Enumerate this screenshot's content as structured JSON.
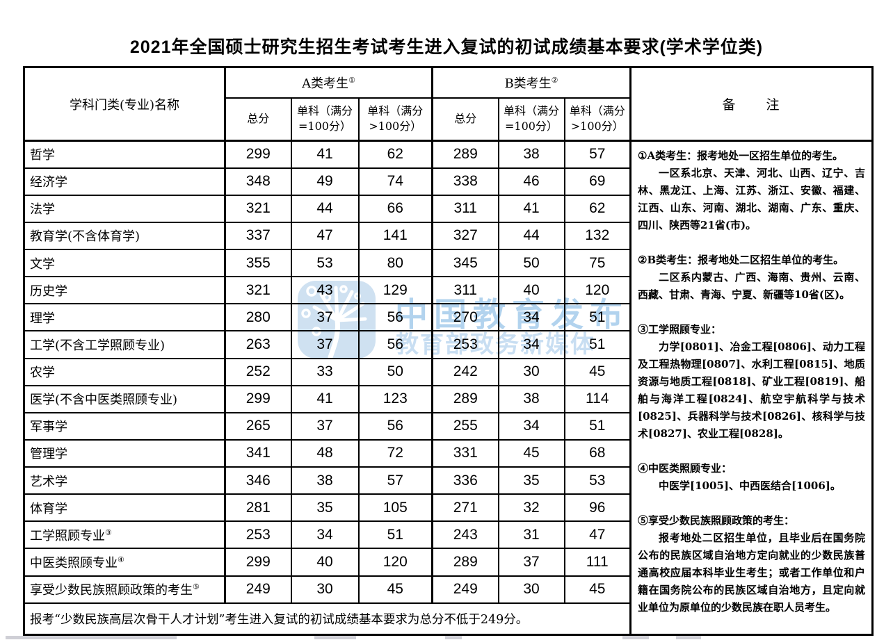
{
  "title": "2021年全国硕士研究生招生考试考生进入复试的初试成绩基本要求(学术学位类)",
  "colors": {
    "text": "#000000",
    "border": "#000000",
    "watermark_blue": "#b2d3ee",
    "watermark_logo_bg": "#cfe1f1"
  },
  "watermark": {
    "line1": "中国教育发布",
    "line2": "教育部政务新媒体",
    "logo": "dandelion-icon"
  },
  "table": {
    "header": {
      "subject": "学科门类(专业)名称",
      "group_a": {
        "label": "A类考生",
        "sup": "①"
      },
      "group_b": {
        "label": "B类考生",
        "sup": "②"
      },
      "remark": "备　　注",
      "sub": [
        "总分",
        "单科（满分\n=100分）",
        "单科（满分\n>100分）"
      ]
    },
    "rows": [
      {
        "label": "哲学",
        "sup": "",
        "a": [
          299,
          41,
          62
        ],
        "b": [
          289,
          38,
          57
        ]
      },
      {
        "label": "经济学",
        "sup": "",
        "a": [
          348,
          49,
          74
        ],
        "b": [
          338,
          46,
          69
        ]
      },
      {
        "label": "法学",
        "sup": "",
        "a": [
          321,
          44,
          66
        ],
        "b": [
          311,
          41,
          62
        ]
      },
      {
        "label": "教育学(不含体育学)",
        "sup": "",
        "a": [
          337,
          47,
          141
        ],
        "b": [
          327,
          44,
          132
        ]
      },
      {
        "label": "文学",
        "sup": "",
        "a": [
          355,
          53,
          80
        ],
        "b": [
          345,
          50,
          75
        ]
      },
      {
        "label": "历史学",
        "sup": "",
        "a": [
          321,
          43,
          129
        ],
        "b": [
          311,
          40,
          120
        ]
      },
      {
        "label": "理学",
        "sup": "",
        "a": [
          280,
          37,
          56
        ],
        "b": [
          270,
          34,
          51
        ]
      },
      {
        "label": "工学(不含工学照顾专业)",
        "sup": "",
        "a": [
          263,
          37,
          56
        ],
        "b": [
          253,
          34,
          51
        ]
      },
      {
        "label": "农学",
        "sup": "",
        "a": [
          252,
          33,
          50
        ],
        "b": [
          242,
          30,
          45
        ]
      },
      {
        "label": "医学(不含中医类照顾专业)",
        "sup": "",
        "a": [
          299,
          41,
          123
        ],
        "b": [
          289,
          38,
          114
        ]
      },
      {
        "label": "军事学",
        "sup": "",
        "a": [
          265,
          37,
          56
        ],
        "b": [
          255,
          34,
          51
        ]
      },
      {
        "label": "管理学",
        "sup": "",
        "a": [
          341,
          48,
          72
        ],
        "b": [
          331,
          45,
          68
        ]
      },
      {
        "label": "艺术学",
        "sup": "",
        "a": [
          346,
          38,
          57
        ],
        "b": [
          336,
          35,
          53
        ]
      },
      {
        "label": "体育学",
        "sup": "",
        "a": [
          281,
          35,
          105
        ],
        "b": [
          271,
          32,
          96
        ]
      },
      {
        "label": "工学照顾专业",
        "sup": "③",
        "a": [
          253,
          34,
          51
        ],
        "b": [
          243,
          31,
          47
        ]
      },
      {
        "label": "中医类照顾专业",
        "sup": "④",
        "a": [
          299,
          40,
          120
        ],
        "b": [
          289,
          37,
          111
        ]
      },
      {
        "label": "享受少数民族照顾政策的考生",
        "sup": "⑤",
        "a": [
          249,
          30,
          45
        ],
        "b": [
          249,
          30,
          45
        ]
      }
    ],
    "footer": "报考“少数民族高层次骨干人才计划”考生进入复试的初试成绩基本要求为总分不低于249分。",
    "notes": [
      {
        "head": "①A类考生：报考地处一区招生单位的考生。",
        "body": "一区系北京、天津、河北、山西、辽宁、吉林、黑龙江、上海、江苏、浙江、安徽、福建、江西、山东、河南、湖北、湖南、广东、重庆、四川、陕西等21省(市)。"
      },
      {
        "head": "②B类考生：报考地处二区招生单位的考生。",
        "body": "二区系内蒙古、广西、海南、贵州、云南、西藏、甘肃、青海、宁夏、新疆等10省(区)。"
      },
      {
        "head": "③工学照顾专业：",
        "body": "力学[0801]、冶金工程[0806]、动力工程及工程热物理[0807]、水利工程[0815]、地质资源与地质工程[0818]、矿业工程[0819]、船舶与海洋工程[0824]、航空宇航科学与技术[0825]、兵器科学与技术[0826]、核科学与技术[0827]、农业工程[0828]。"
      },
      {
        "head": "④中医类照顾专业：",
        "body": "中医学[1005]、中西医结合[1006]。"
      },
      {
        "head": "⑤享受少数民族照顾政策的考生：",
        "body": "报考地处二区招生单位，且毕业后在国务院公布的民族区域自治地方定向就业的少数民族普通高校应届本科毕业生考生；或者工作单位和户籍在国务院公布的民族区域自治地方，且定向就业单位为原单位的少数民族在职人员考生。"
      }
    ]
  }
}
